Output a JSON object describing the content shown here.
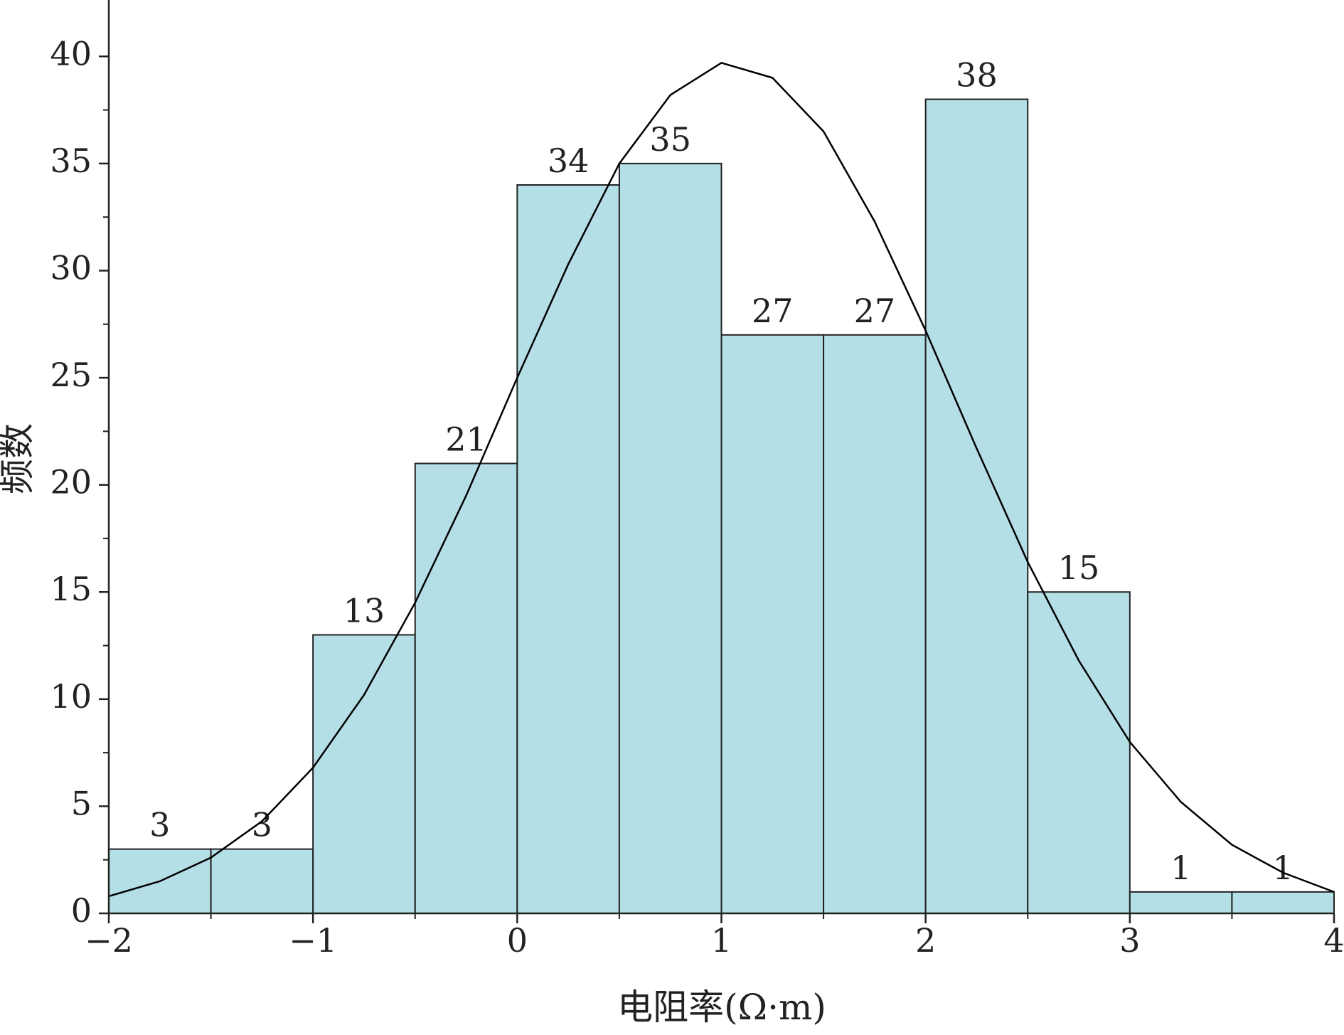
{
  "chart_data": {
    "type": "histogram",
    "x_label": "电阻率(Ω·m)",
    "y_label": "频数",
    "bins": [
      -2,
      -1.5,
      -1,
      -0.5,
      0,
      0.5,
      1,
      1.5,
      2,
      2.5,
      3,
      3.5,
      4
    ],
    "values": [
      3,
      3,
      13,
      21,
      34,
      35,
      27,
      27,
      38,
      15,
      1,
      1
    ],
    "color": "#b5dfe6",
    "edge_color": "#222222",
    "curve": {
      "color": "#000000",
      "x": [
        -2,
        -1.75,
        -1.5,
        -1.25,
        -1,
        -0.75,
        -0.5,
        -0.25,
        0,
        0.25,
        0.5,
        0.75,
        1,
        1.25,
        1.5,
        1.75,
        2,
        2.25,
        2.5,
        2.75,
        3,
        3.25,
        3.5,
        3.75,
        4
      ],
      "values": [
        0.8,
        1.5,
        2.6,
        4.3,
        6.8,
        10.2,
        14.5,
        19.5,
        25.0,
        30.3,
        35.0,
        38.2,
        39.7,
        39.0,
        36.5,
        32.3,
        27.2,
        21.7,
        16.4,
        11.8,
        8.0,
        5.2,
        3.2,
        1.9,
        1.0
      ]
    },
    "xlim": [
      -2,
      4
    ],
    "ylim": [
      0,
      42.5
    ],
    "xticks": [
      {
        "value": -2,
        "label": "−2"
      },
      {
        "value": -1,
        "label": "−1"
      },
      0,
      1,
      2,
      3,
      4
    ],
    "xminorticks": [
      -1.5,
      -0.5,
      0.5,
      1.5,
      2.5,
      3.5
    ],
    "yticks": [
      0,
      5,
      10,
      15,
      20,
      25,
      30,
      35,
      40
    ],
    "yminorticks": [
      2.5,
      7.5,
      12.5,
      17.5,
      22.5,
      27.5,
      32.5,
      37.5
    ]
  }
}
